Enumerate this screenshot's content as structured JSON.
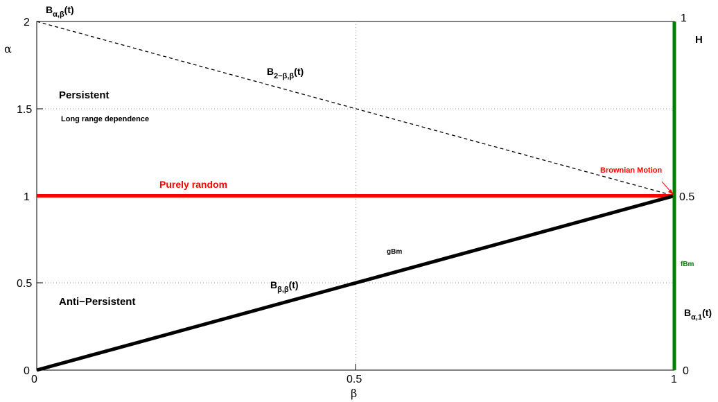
{
  "chart_data": {
    "type": "line",
    "title": "",
    "xlabel": "β",
    "ylabel": "α",
    "right_axis_label": "H",
    "xlim": [
      0,
      1
    ],
    "ylim": [
      0,
      2
    ],
    "right_ylim": [
      0,
      1
    ],
    "grid": "dotted at x=0.5 and y=0.5, 1, 1.5",
    "x_ticks": [
      "0",
      "0.5",
      "1"
    ],
    "y_ticks": [
      "0",
      "0.5",
      "1",
      "1.5",
      "2"
    ],
    "right_ticks": [
      "0",
      "0.5",
      "1"
    ],
    "colors": {
      "black": "#000000",
      "red": "#ff0000",
      "green": "#007f00"
    },
    "series": [
      {
        "style": "dashed",
        "color": "#000000",
        "x": [
          0,
          1
        ],
        "y": [
          2,
          1
        ]
      },
      {
        "style": "solid-thick",
        "color": "#ff0000",
        "x": [
          0,
          1
        ],
        "y": [
          1,
          1
        ]
      },
      {
        "style": "solid-thick",
        "color": "#000000",
        "x": [
          0,
          1
        ],
        "y": [
          0,
          1
        ]
      },
      {
        "style": "solid-thick",
        "color": "#007f00",
        "x": [
          1,
          1
        ],
        "y": [
          0,
          2
        ]
      }
    ],
    "annotations": {
      "b_alpha_beta": {
        "main": "B",
        "sub": "α,β",
        "suffix": "(t)"
      },
      "b_2beta_beta": {
        "main": "B",
        "sub": "2−β,β",
        "suffix": "(t)"
      },
      "b_beta_beta": {
        "main": "B",
        "sub": "β,β",
        "suffix": "(t)"
      },
      "b_alpha_1": {
        "main": "B",
        "sub": "α,1",
        "suffix": "(t)"
      },
      "persistent": "Persistent",
      "long_range": "Long range dependence",
      "purely_random": "Purely random",
      "brownian_motion": "Brownian Motion",
      "gbm": "gBm",
      "fbm": "fBm",
      "anti_persistent": "Anti−Persistent"
    }
  }
}
